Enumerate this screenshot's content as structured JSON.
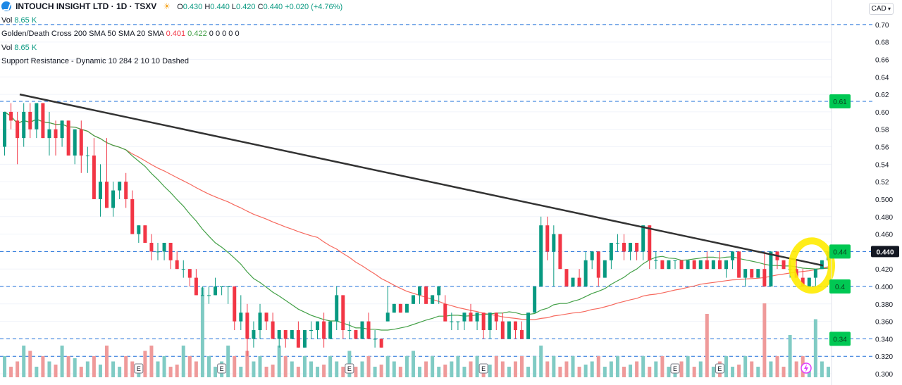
{
  "header": {
    "symbol": "INTOUCH INSIGHT LTD · 1D · TSXV",
    "o_label": "O",
    "o": "0.430",
    "h_label": "H",
    "h": "0.440",
    "l_label": "L",
    "l": "0.420",
    "c_label": "C",
    "c": "0.440",
    "change": "+0.020 (+4.76%)",
    "logo_icon": "intouch-logo-icon",
    "market_icon": "sun-icon"
  },
  "indicators": [
    {
      "label": "Vol",
      "value": "8.65 K"
    },
    {
      "label": "Golden/Death Cross 200 SMA 50 SMA 20 SMA",
      "v1": "0.401",
      "v2": "0.422",
      "zeros": "0 0 0 0 0"
    },
    {
      "label": "Vol",
      "value": "8.65 K"
    },
    {
      "label": "Support Resistance - Dynamic 10 284 2 10 10 Dashed"
    }
  ],
  "currency": "CAD",
  "colors": {
    "up": "#089981",
    "down": "#f23645",
    "sma_red": "#f44336",
    "sma_green": "#43a047",
    "trendline": "#333333",
    "level": "#1e6fd9",
    "label_green": "#00c853",
    "highlight": "#ffeb00"
  },
  "chart_data": {
    "type": "candlestick",
    "y_ticks": [
      "0.70",
      "0.68",
      "0.66",
      "0.64",
      "0.62",
      "0.60",
      "0.58",
      "0.56",
      "0.54",
      "0.52",
      "0.500",
      "0.480",
      "0.460",
      "0.440",
      "0.420",
      "0.400",
      "0.380",
      "0.360",
      "0.340",
      "0.320",
      "0.300"
    ],
    "ylim": [
      0.296,
      0.712
    ],
    "last_price": "0.440",
    "levels": [
      {
        "value": 0.7,
        "label": ""
      },
      {
        "value": 0.612,
        "label": "0.61"
      },
      {
        "value": 0.44,
        "label": "0.44"
      },
      {
        "value": 0.4,
        "label": "0.4"
      },
      {
        "value": 0.34,
        "label": "0.34"
      },
      {
        "value": 0.32,
        "label": ""
      }
    ],
    "earnings_marker": "E",
    "earnings_at": [
      0.16,
      0.265,
      0.415,
      0.58,
      0.805,
      0.865
    ],
    "candles": [
      [
        0.56,
        0.6,
        0.55,
        0.6
      ],
      [
        0.6,
        0.61,
        0.58,
        0.59
      ],
      [
        0.59,
        0.6,
        0.54,
        0.57
      ],
      [
        0.57,
        0.61,
        0.56,
        0.6
      ],
      [
        0.6,
        0.61,
        0.57,
        0.58
      ],
      [
        0.58,
        0.61,
        0.57,
        0.61
      ],
      [
        0.61,
        0.61,
        0.57,
        0.57
      ],
      [
        0.57,
        0.6,
        0.55,
        0.58
      ],
      [
        0.58,
        0.59,
        0.55,
        0.57
      ],
      [
        0.57,
        0.59,
        0.56,
        0.59
      ],
      [
        0.59,
        0.59,
        0.55,
        0.55
      ],
      [
        0.55,
        0.58,
        0.54,
        0.58
      ],
      [
        0.58,
        0.59,
        0.53,
        0.55
      ],
      [
        0.55,
        0.56,
        0.53,
        0.55
      ],
      [
        0.55,
        0.57,
        0.5,
        0.5
      ],
      [
        0.5,
        0.54,
        0.48,
        0.52
      ],
      [
        0.52,
        0.57,
        0.49,
        0.49
      ],
      [
        0.49,
        0.52,
        0.48,
        0.51
      ],
      [
        0.51,
        0.52,
        0.5,
        0.52
      ],
      [
        0.52,
        0.53,
        0.49,
        0.5
      ],
      [
        0.5,
        0.51,
        0.46,
        0.46
      ],
      [
        0.46,
        0.47,
        0.45,
        0.47
      ],
      [
        0.47,
        0.47,
        0.45,
        0.45
      ],
      [
        0.45,
        0.46,
        0.43,
        0.44
      ],
      [
        0.44,
        0.45,
        0.43,
        0.44
      ],
      [
        0.44,
        0.45,
        0.43,
        0.45
      ],
      [
        0.45,
        0.45,
        0.42,
        0.43
      ],
      [
        0.43,
        0.44,
        0.42,
        0.42
      ],
      [
        0.42,
        0.43,
        0.41,
        0.42
      ],
      [
        0.42,
        0.42,
        0.4,
        0.41
      ],
      [
        0.41,
        0.42,
        0.39,
        0.39
      ],
      [
        0.39,
        0.4,
        0.39,
        0.39
      ],
      [
        0.39,
        0.4,
        0.38,
        0.39
      ],
      [
        0.39,
        0.41,
        0.39,
        0.4
      ],
      [
        0.4,
        0.4,
        0.39,
        0.4
      ],
      [
        0.4,
        0.4,
        0.38,
        0.4
      ],
      [
        0.4,
        0.4,
        0.35,
        0.36
      ],
      [
        0.36,
        0.39,
        0.35,
        0.37
      ],
      [
        0.37,
        0.38,
        0.32,
        0.34
      ],
      [
        0.34,
        0.36,
        0.33,
        0.35
      ],
      [
        0.35,
        0.38,
        0.34,
        0.37
      ],
      [
        0.37,
        0.37,
        0.35,
        0.36
      ],
      [
        0.36,
        0.37,
        0.34,
        0.34
      ],
      [
        0.34,
        0.35,
        0.33,
        0.35
      ],
      [
        0.35,
        0.35,
        0.33,
        0.34
      ],
      [
        0.34,
        0.35,
        0.34,
        0.35
      ],
      [
        0.35,
        0.36,
        0.33,
        0.33
      ],
      [
        0.33,
        0.35,
        0.33,
        0.35
      ],
      [
        0.35,
        0.36,
        0.34,
        0.35
      ],
      [
        0.35,
        0.36,
        0.34,
        0.36
      ],
      [
        0.36,
        0.37,
        0.33,
        0.34
      ],
      [
        0.34,
        0.36,
        0.34,
        0.36
      ],
      [
        0.36,
        0.4,
        0.35,
        0.39
      ],
      [
        0.39,
        0.39,
        0.34,
        0.35
      ],
      [
        0.35,
        0.36,
        0.34,
        0.35
      ],
      [
        0.35,
        0.35,
        0.34,
        0.34
      ],
      [
        0.34,
        0.36,
        0.34,
        0.36
      ],
      [
        0.36,
        0.37,
        0.34,
        0.34
      ],
      [
        0.34,
        0.35,
        0.33,
        0.34
      ],
      [
        0.34,
        0.34,
        0.33,
        0.33
      ],
      [
        0.36,
        0.4,
        0.36,
        0.37
      ],
      [
        0.37,
        0.38,
        0.37,
        0.38
      ],
      [
        0.38,
        0.38,
        0.37,
        0.37
      ],
      [
        0.37,
        0.38,
        0.37,
        0.38
      ],
      [
        0.38,
        0.39,
        0.38,
        0.39
      ],
      [
        0.39,
        0.4,
        0.38,
        0.4
      ],
      [
        0.4,
        0.4,
        0.38,
        0.38
      ],
      [
        0.38,
        0.39,
        0.38,
        0.39
      ],
      [
        0.39,
        0.4,
        0.38,
        0.4
      ],
      [
        0.38,
        0.39,
        0.36,
        0.36
      ],
      [
        0.36,
        0.37,
        0.35,
        0.36
      ],
      [
        0.36,
        0.36,
        0.35,
        0.36
      ],
      [
        0.36,
        0.37,
        0.35,
        0.37
      ],
      [
        0.37,
        0.38,
        0.36,
        0.36
      ],
      [
        0.36,
        0.37,
        0.35,
        0.37
      ],
      [
        0.37,
        0.37,
        0.34,
        0.35
      ],
      [
        0.35,
        0.37,
        0.34,
        0.37
      ],
      [
        0.37,
        0.37,
        0.35,
        0.36
      ],
      [
        0.36,
        0.37,
        0.34,
        0.34
      ],
      [
        0.34,
        0.36,
        0.34,
        0.36
      ],
      [
        0.36,
        0.36,
        0.34,
        0.35
      ],
      [
        0.35,
        0.36,
        0.34,
        0.34
      ],
      [
        0.34,
        0.37,
        0.34,
        0.37
      ],
      [
        0.37,
        0.4,
        0.37,
        0.4
      ],
      [
        0.4,
        0.48,
        0.4,
        0.47
      ],
      [
        0.47,
        0.48,
        0.43,
        0.44
      ],
      [
        0.44,
        0.47,
        0.4,
        0.46
      ],
      [
        0.46,
        0.46,
        0.42,
        0.42
      ],
      [
        0.42,
        0.42,
        0.4,
        0.4
      ],
      [
        0.4,
        0.41,
        0.4,
        0.41
      ],
      [
        0.41,
        0.42,
        0.4,
        0.4
      ],
      [
        0.4,
        0.44,
        0.4,
        0.43
      ],
      [
        0.43,
        0.44,
        0.42,
        0.44
      ],
      [
        0.44,
        0.44,
        0.4,
        0.41
      ],
      [
        0.41,
        0.43,
        0.41,
        0.43
      ],
      [
        0.43,
        0.45,
        0.42,
        0.45
      ],
      [
        0.45,
        0.46,
        0.44,
        0.45
      ],
      [
        0.45,
        0.46,
        0.43,
        0.44
      ],
      [
        0.44,
        0.45,
        0.43,
        0.45
      ],
      [
        0.45,
        0.45,
        0.43,
        0.44
      ],
      [
        0.44,
        0.47,
        0.43,
        0.47
      ],
      [
        0.47,
        0.47,
        0.42,
        0.43
      ],
      [
        0.43,
        0.44,
        0.42,
        0.43
      ],
      [
        0.43,
        0.43,
        0.42,
        0.42
      ],
      [
        0.42,
        0.43,
        0.42,
        0.43
      ],
      [
        0.43,
        0.43,
        0.42,
        0.43
      ],
      [
        0.43,
        0.43,
        0.42,
        0.42
      ],
      [
        0.42,
        0.43,
        0.42,
        0.43
      ],
      [
        0.43,
        0.43,
        0.42,
        0.42
      ],
      [
        0.42,
        0.43,
        0.42,
        0.43
      ],
      [
        0.43,
        0.44,
        0.42,
        0.42
      ],
      [
        0.42,
        0.43,
        0.42,
        0.43
      ],
      [
        0.43,
        0.44,
        0.42,
        0.42
      ],
      [
        0.42,
        0.43,
        0.41,
        0.43
      ],
      [
        0.43,
        0.44,
        0.42,
        0.44
      ],
      [
        0.44,
        0.44,
        0.41,
        0.41
      ],
      [
        0.41,
        0.42,
        0.4,
        0.42
      ],
      [
        0.42,
        0.42,
        0.41,
        0.41
      ],
      [
        0.41,
        0.42,
        0.41,
        0.42
      ],
      [
        0.42,
        0.44,
        0.4,
        0.4
      ],
      [
        0.4,
        0.44,
        0.4,
        0.44
      ],
      [
        0.44,
        0.44,
        0.42,
        0.43
      ],
      [
        0.43,
        0.43,
        0.42,
        0.42
      ],
      [
        0.42,
        0.43,
        0.41,
        0.42
      ],
      [
        0.42,
        0.43,
        0.41,
        0.41
      ],
      [
        0.41,
        0.42,
        0.4,
        0.4
      ],
      [
        0.4,
        0.41,
        0.4,
        0.41
      ],
      [
        0.41,
        0.42,
        0.4,
        0.42
      ],
      [
        0.42,
        0.43,
        0.42,
        0.43
      ],
      [
        0.43,
        0.44,
        0.42,
        0.44
      ]
    ],
    "volumes": [
      0.2,
      0.1,
      0.15,
      0.3,
      0.25,
      0.1,
      0.2,
      0.15,
      0.12,
      0.3,
      0.2,
      0.18,
      0.1,
      0.15,
      0.2,
      0.12,
      0.3,
      0.15,
      0.1,
      0.2,
      0.15,
      0.1,
      0.25,
      0.3,
      0.15,
      0.2,
      0.1,
      0.12,
      0.3,
      0.2,
      0.15,
      0.85,
      0.2,
      0.1,
      0.15,
      0.3,
      0.2,
      0.1,
      0.25,
      0.15,
      0.2,
      0.1,
      0.12,
      0.3,
      0.2,
      0.15,
      0.1,
      0.2,
      0.15,
      0.1,
      0.12,
      0.2,
      0.15,
      0.1,
      0.25,
      0.1,
      0.15,
      0.2,
      0.1,
      0.12,
      0.2,
      0.15,
      0.1,
      0.2,
      0.25,
      0.1,
      0.15,
      0.2,
      0.1,
      0.12,
      0.15,
      0.2,
      0.1,
      0.15,
      0.2,
      0.1,
      0.12,
      0.2,
      0.15,
      0.1,
      0.15,
      0.2,
      0.1,
      0.2,
      0.3,
      0.15,
      0.2,
      0.1,
      0.15,
      0.2,
      0.1,
      0.12,
      0.15,
      0.2,
      0.1,
      0.15,
      0.2,
      0.1,
      0.12,
      0.15,
      0.2,
      0.1,
      0.15,
      0.2,
      0.1,
      0.12,
      0.15,
      0.2,
      0.1,
      0.15,
      0.6,
      0.1,
      0.15,
      0.2,
      0.1,
      0.12,
      0.2,
      0.15,
      0.1,
      0.7,
      0.15,
      0.2,
      0.1,
      0.4,
      0.15,
      0.2,
      0.1,
      0.55,
      0.15,
      0.1
    ]
  }
}
